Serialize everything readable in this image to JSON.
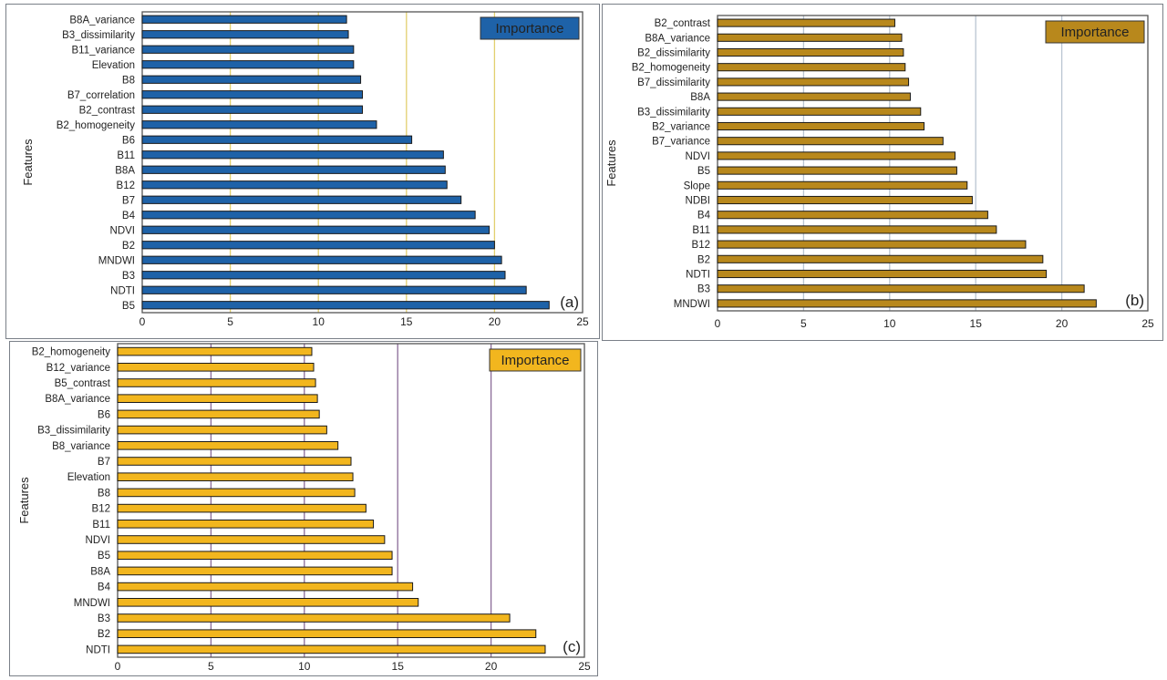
{
  "chart_data": [
    {
      "type": "bar",
      "orientation": "horizontal",
      "panel_label": "(a)",
      "legend": "Importance",
      "legend_placement": "top-right",
      "ylabel": "Features",
      "xlim": [
        0,
        25
      ],
      "xticks": [
        "0",
        "5",
        "10",
        "15",
        "20",
        "25"
      ],
      "grid": true,
      "bar_color": "#1e62a8",
      "grid_color": "#e2cf6e",
      "categories": [
        "B8A_variance",
        "B3_dissimilarity",
        "B11_variance",
        "Elevation",
        "B8",
        "B7_correlation",
        "B2_contrast",
        "B2_homogeneity",
        "B6",
        "B11",
        "B8A",
        "B12",
        "B7",
        "B4",
        "NDVI",
        "B2",
        "MNDWI",
        "B3",
        "NDTI",
        "B5"
      ],
      "values": [
        11.6,
        11.7,
        12.0,
        12.0,
        12.4,
        12.5,
        12.5,
        13.3,
        15.3,
        17.1,
        17.2,
        17.3,
        18.1,
        18.9,
        19.7,
        20.0,
        20.4,
        20.6,
        21.8,
        23.1
      ]
    },
    {
      "type": "bar",
      "orientation": "horizontal",
      "panel_label": "(b)",
      "legend": "Importance",
      "legend_placement": "top-right",
      "ylabel": "Features",
      "xlim": [
        0,
        25
      ],
      "xticks": [
        "0",
        "5",
        "10",
        "15",
        "20",
        "25"
      ],
      "grid": true,
      "bar_color": "#b8881c",
      "grid_color": "#b9c5d2",
      "categories": [
        "B2_contrast",
        "B8A_variance",
        "B2_dissimilarity",
        "B2_homogeneity",
        "B7_dissimilarity",
        "B8A",
        "B3_dissimilarity",
        "B2_variance",
        "B7_variance",
        "NDVI",
        "B5",
        "Slope",
        "NDBI",
        "B4",
        "B11",
        "B12",
        "B2",
        "NDTI",
        "B3",
        "MNDWI"
      ],
      "values": [
        10.3,
        10.7,
        10.8,
        10.9,
        11.1,
        11.2,
        11.8,
        12.0,
        13.1,
        13.8,
        13.9,
        14.5,
        14.8,
        15.7,
        16.2,
        17.9,
        18.9,
        19.1,
        21.3,
        22.0
      ]
    },
    {
      "type": "bar",
      "orientation": "horizontal",
      "panel_label": "(c)",
      "legend": "Importance",
      "legend_placement": "top-right",
      "ylabel": "Features",
      "xlim": [
        0,
        25
      ],
      "xticks": [
        "0",
        "5",
        "10",
        "15",
        "20",
        "25"
      ],
      "grid": true,
      "bar_color": "#f2b61e",
      "grid_color": "#8a6b98",
      "categories": [
        "B2_homogeneity",
        "B12_variance",
        "B5_contrast",
        "B8A_variance",
        "B6",
        "B3_dissimilarity",
        "B8_variance",
        "B7",
        "Elevation",
        "B8",
        "B12",
        "B11",
        "NDVI",
        "B5",
        "B8A",
        "B4",
        "MNDWI",
        "B3",
        "B2",
        "NDTI"
      ],
      "values": [
        10.4,
        10.5,
        10.6,
        10.7,
        10.8,
        11.2,
        11.8,
        12.5,
        12.6,
        12.7,
        13.3,
        13.7,
        14.3,
        14.7,
        14.7,
        15.8,
        16.1,
        21.0,
        22.4,
        22.9
      ]
    }
  ]
}
